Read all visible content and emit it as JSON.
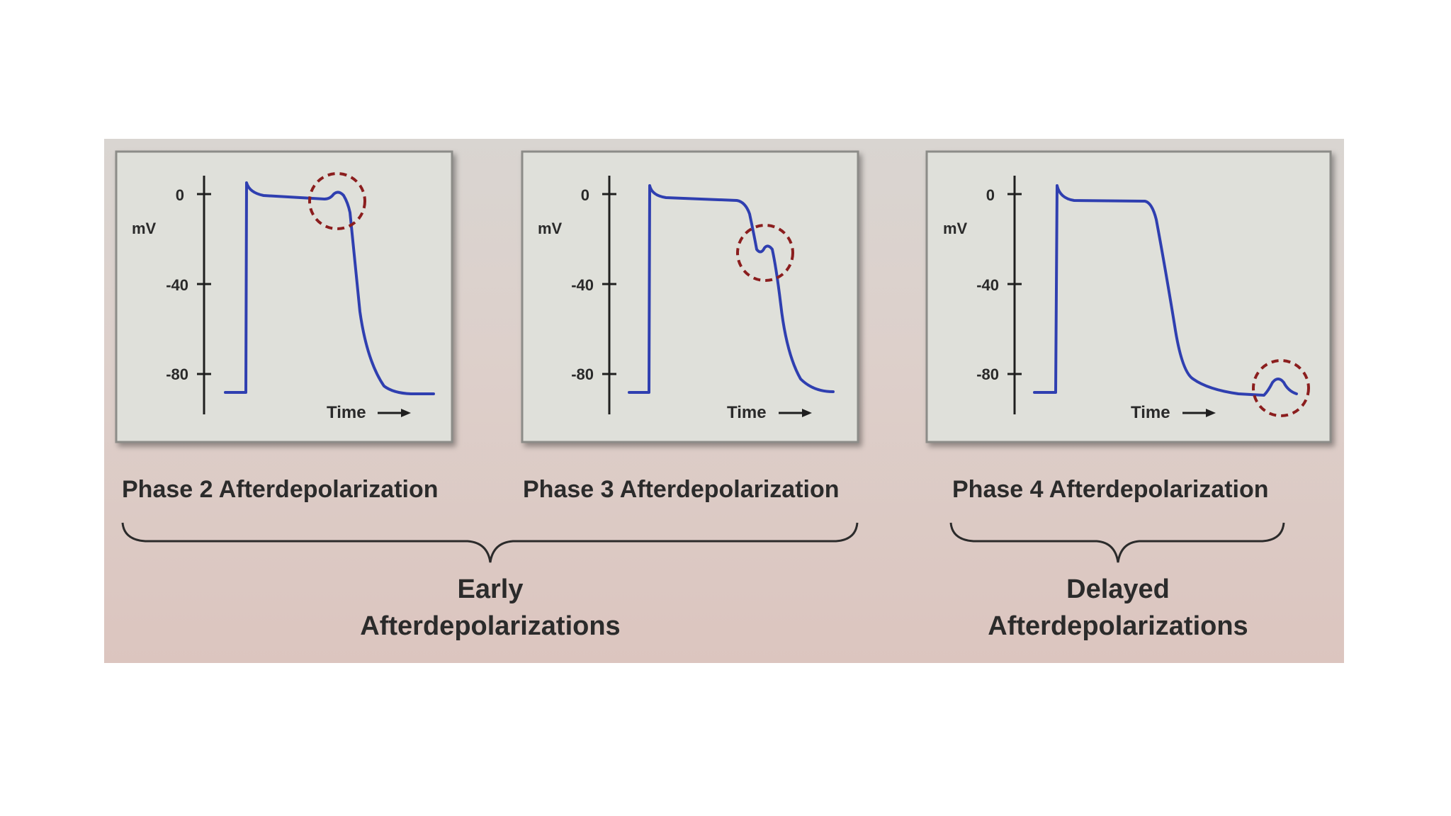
{
  "panels": [
    {
      "id": "phase2",
      "unit": "mV",
      "ticks": [
        "0",
        "-40",
        "-80"
      ],
      "time_label": "Time",
      "caption": "Phase 2 Afterdepolarization",
      "highlight": "plateau"
    },
    {
      "id": "phase3",
      "unit": "mV",
      "ticks": [
        "0",
        "-40",
        "-80"
      ],
      "time_label": "Time",
      "caption": "Phase 3 Afterdepolarization",
      "highlight": "repolarization"
    },
    {
      "id": "phase4",
      "unit": "mV",
      "ticks": [
        "0",
        "-40",
        "-80"
      ],
      "time_label": "Time",
      "caption": "Phase 4 Afterdepolarization",
      "highlight": "resting"
    }
  ],
  "groups": {
    "early": "Early\nAfterdepolarizations",
    "delayed": "Delayed\nAfterdepolarizations"
  },
  "colors": {
    "trace": "#2f3fb0",
    "highlight": "#8b1e1e",
    "panel_fill": "#dfe0da",
    "axis": "#1f1f1f"
  }
}
